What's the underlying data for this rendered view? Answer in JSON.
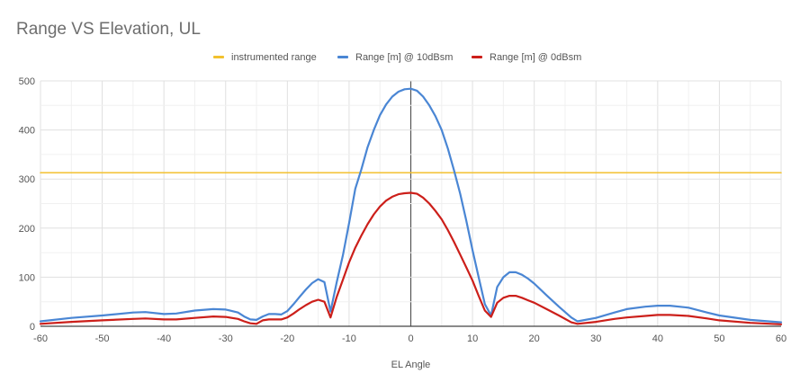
{
  "chart_data": {
    "type": "line",
    "title": "Range VS Elevation, UL",
    "xlabel": "EL Angle",
    "ylabel": "",
    "xlim": [
      -60,
      60
    ],
    "ylim": [
      0,
      500
    ],
    "xticks": [
      -60,
      -50,
      -40,
      -30,
      -20,
      -10,
      0,
      10,
      20,
      30,
      40,
      50,
      60
    ],
    "yticks": [
      0,
      100,
      200,
      300,
      400,
      500
    ],
    "grid": true,
    "legend_position": "top-center",
    "series": [
      {
        "name": "instrumented range",
        "color": "#f2c12e",
        "x": [
          -60,
          60
        ],
        "y": [
          313,
          313
        ]
      },
      {
        "name": "Range [m] @ 10dBsm",
        "color": "#4a86d4",
        "x": [
          -60,
          -55,
          -50,
          -45,
          -43,
          -40,
          -38,
          -35,
          -32,
          -30,
          -28,
          -27,
          -26,
          -25,
          -24,
          -23,
          -22,
          -21,
          -20,
          -19,
          -18,
          -17,
          -16,
          -15,
          -14,
          -13,
          -12,
          -11,
          -10,
          -9,
          -8,
          -7,
          -6,
          -5,
          -4,
          -3,
          -2,
          -1,
          0,
          1,
          2,
          3,
          4,
          5,
          6,
          7,
          8,
          9,
          10,
          11,
          12,
          13,
          14,
          15,
          16,
          17,
          18,
          19,
          20,
          22,
          24,
          26,
          27,
          30,
          33,
          35,
          38,
          40,
          42,
          45,
          48,
          50,
          55,
          60
        ],
        "y": [
          10,
          17,
          22,
          28,
          29,
          25,
          26,
          32,
          35,
          34,
          28,
          20,
          14,
          13,
          20,
          25,
          25,
          24,
          31,
          45,
          60,
          75,
          88,
          96,
          90,
          30,
          90,
          145,
          210,
          280,
          320,
          365,
          400,
          430,
          452,
          468,
          478,
          483,
          484,
          480,
          468,
          450,
          428,
          400,
          362,
          318,
          270,
          215,
          155,
          100,
          45,
          22,
          80,
          100,
          110,
          110,
          105,
          97,
          87,
          63,
          40,
          18,
          10,
          17,
          28,
          35,
          40,
          42,
          42,
          38,
          28,
          22,
          13,
          8
        ]
      },
      {
        "name": "Range [m] @ 0dBsm",
        "color": "#cc1f1a",
        "x": [
          -60,
          -55,
          -50,
          -45,
          -43,
          -40,
          -38,
          -35,
          -32,
          -30,
          -28,
          -27,
          -26,
          -25,
          -24,
          -23,
          -22,
          -21,
          -20,
          -19,
          -18,
          -17,
          -16,
          -15,
          -14,
          -13,
          -12,
          -11,
          -10,
          -9,
          -8,
          -7,
          -6,
          -5,
          -4,
          -3,
          -2,
          -1,
          0,
          1,
          2,
          3,
          4,
          5,
          6,
          7,
          8,
          9,
          10,
          11,
          12,
          13,
          14,
          15,
          16,
          17,
          18,
          19,
          20,
          22,
          24,
          26,
          27,
          30,
          33,
          35,
          38,
          40,
          42,
          45,
          48,
          50,
          55,
          60
        ],
        "y": [
          5,
          9,
          12,
          15,
          16,
          14,
          14,
          17,
          20,
          19,
          15,
          10,
          6,
          5,
          12,
          14,
          14,
          14,
          18,
          26,
          35,
          43,
          50,
          54,
          50,
          18,
          60,
          95,
          130,
          160,
          185,
          208,
          228,
          244,
          256,
          264,
          269,
          271,
          272,
          270,
          262,
          250,
          235,
          218,
          196,
          172,
          146,
          120,
          93,
          62,
          32,
          19,
          48,
          58,
          62,
          62,
          58,
          53,
          48,
          35,
          22,
          8,
          5,
          9,
          15,
          18,
          21,
          23,
          23,
          21,
          16,
          12,
          7,
          4
        ]
      }
    ]
  }
}
